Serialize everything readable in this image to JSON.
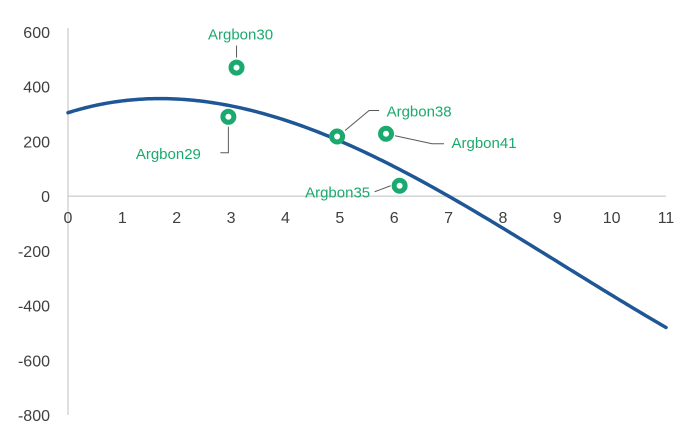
{
  "chart_data": {
    "type": "scatter",
    "title": "",
    "xlabel": "",
    "ylabel": "",
    "xlim": [
      0,
      11
    ],
    "ylim": [
      -800,
      600
    ],
    "x_ticks": [
      0,
      1,
      2,
      3,
      4,
      5,
      6,
      7,
      8,
      9,
      10,
      11
    ],
    "y_ticks": [
      600,
      400,
      200,
      0,
      -200,
      -400,
      -600,
      -800
    ],
    "grid": false,
    "legend": "none",
    "colors": {
      "curve": "#1f5796",
      "points": "#1aaa6f",
      "labels": "#1aaa6f",
      "leader": "#595959",
      "axis": "#bfbfbf",
      "tick_text": "#404040"
    },
    "curve": {
      "type": "polynomial",
      "x_range": [
        0,
        11
      ],
      "y_at_0": 305,
      "y_at_2": 355,
      "y_at_7": 0,
      "y_at_11": -480
    },
    "points": [
      {
        "label": "Argbon30",
        "x": 3.1,
        "y": 470
      },
      {
        "label": "Argbon29",
        "x": 2.95,
        "y": 290
      },
      {
        "label": "Argbon38",
        "x": 4.95,
        "y": 218
      },
      {
        "label": "Argbon41",
        "x": 5.85,
        "y": 228
      },
      {
        "label": "Argbon35",
        "x": 6.1,
        "y": 38
      }
    ]
  }
}
